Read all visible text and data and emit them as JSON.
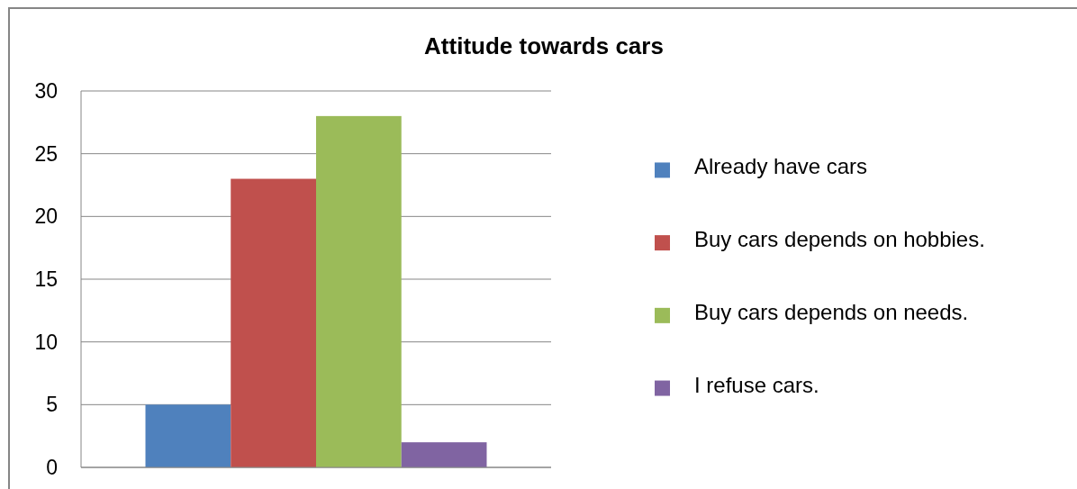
{
  "chart_data": {
    "type": "bar",
    "title": "Attitude towards cars",
    "categories": [
      null
    ],
    "series": [
      {
        "name": "Already have cars",
        "color": "#4f81bd",
        "values": [
          5
        ]
      },
      {
        "name": "Buy cars depends on hobbies.",
        "color": "#c0504d",
        "values": [
          23
        ]
      },
      {
        "name": "Buy cars depends on needs.",
        "color": "#9bbb59",
        "values": [
          28
        ]
      },
      {
        "name": "I refuse cars.",
        "color": "#8064a2",
        "values": [
          2
        ]
      }
    ],
    "ylim": [
      0,
      30
    ],
    "yticks": [
      0,
      5,
      10,
      15,
      20,
      25,
      30
    ],
    "grid": "y",
    "legend": "right"
  }
}
